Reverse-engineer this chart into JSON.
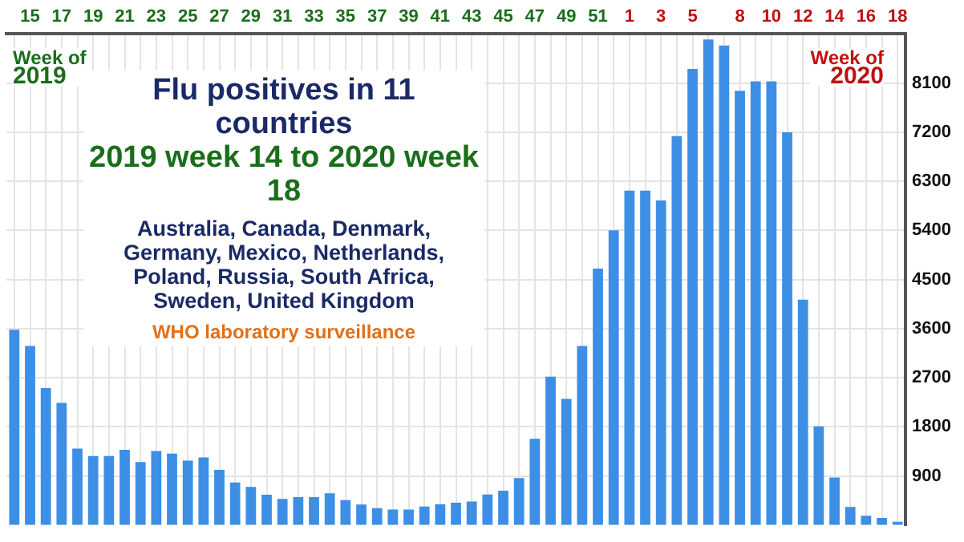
{
  "chart_data": {
    "type": "bar",
    "title": "Flu positives in 11 countries",
    "subtitle": "2019 week 14 to 2020 week 18",
    "annotations": [
      "Australia, Canada, Denmark, Germany, Mexico, Netherlands, Poland, Russia, South Africa, Sweden, United Kingdom",
      "WHO laboratory surveillance",
      "Week of 2019",
      "Week of 2020"
    ],
    "categories": [
      null,
      "15",
      null,
      "17",
      null,
      "19",
      null,
      "21",
      null,
      "23",
      null,
      "25",
      null,
      "27",
      null,
      "29",
      null,
      "31",
      null,
      "33",
      null,
      "35",
      null,
      "37",
      null,
      "39",
      null,
      "41",
      null,
      "43",
      null,
      "45",
      null,
      "47",
      null,
      "49",
      null,
      "51",
      null,
      "1",
      null,
      "3",
      null,
      "5",
      null,
      null,
      "8",
      null,
      "10",
      null,
      "12",
      null,
      "14",
      null,
      "16",
      null,
      "18"
    ],
    "values": [
      3580,
      3280,
      2510,
      2240,
      1400,
      1265,
      1265,
      1380,
      1155,
      1355,
      1310,
      1180,
      1240,
      1010,
      780,
      700,
      555,
      480,
      510,
      510,
      580,
      455,
      375,
      310,
      285,
      285,
      340,
      380,
      410,
      430,
      560,
      630,
      860,
      1580,
      2720,
      2310,
      3280,
      4700,
      5400,
      6130,
      6130,
      5950,
      7130,
      8360,
      8900,
      8790,
      7960,
      8130,
      8130,
      7200,
      4130,
      1810,
      870,
      330,
      170,
      130,
      60
    ],
    "color": "#3d8fe6",
    "ylim": [
      0,
      9000
    ],
    "yticks": [
      900,
      1800,
      2700,
      3600,
      4500,
      5400,
      6300,
      7200,
      8100
    ],
    "grid": true
  }
}
